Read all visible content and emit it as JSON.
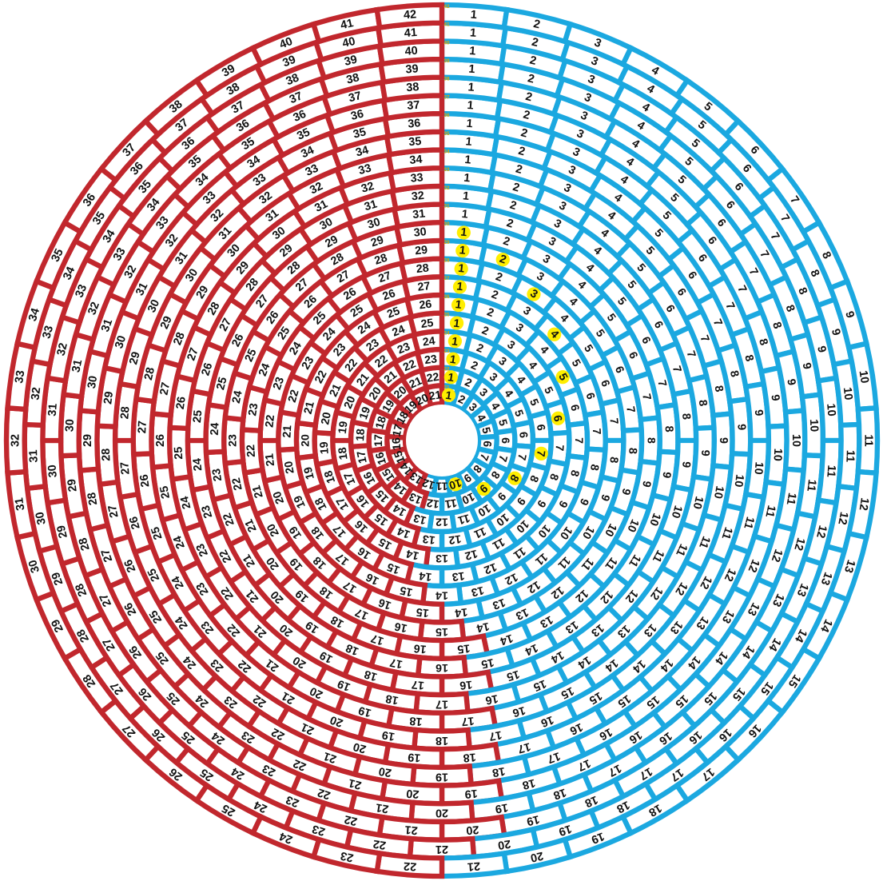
{
  "calendar": {
    "rings": [
      {
        "ring": 21,
        "split_after_day": 12,
        "highlight_days": [
          1,
          10
        ],
        "side_label_days": []
      },
      {
        "ring": 22,
        "split_after_day": 12,
        "highlight_days": [
          1,
          9
        ],
        "side_label_days": []
      },
      {
        "ring": 23,
        "split_after_day": 13,
        "highlight_days": [
          1,
          8
        ],
        "side_label_days": []
      },
      {
        "ring": 24,
        "split_after_day": 13,
        "highlight_days": [
          1,
          7
        ],
        "side_label_days": []
      },
      {
        "ring": 25,
        "split_after_day": 13,
        "highlight_days": [
          1,
          6
        ],
        "side_label_days": []
      },
      {
        "ring": 26,
        "split_after_day": 14,
        "highlight_days": [
          1,
          5
        ],
        "side_label_days": []
      },
      {
        "ring": 27,
        "split_after_day": 14,
        "highlight_days": [
          1,
          4
        ],
        "side_label_days": []
      },
      {
        "ring": 28,
        "split_after_day": 14,
        "highlight_days": [
          1,
          3
        ],
        "side_label_days": []
      },
      {
        "ring": 29,
        "split_after_day": 14,
        "highlight_days": [
          1,
          2
        ],
        "side_label_days": []
      },
      {
        "ring": 30,
        "split_after_day": 14,
        "highlight_days": [
          1
        ],
        "side_label_days": []
      },
      {
        "ring": 31,
        "split_after_day": 15,
        "highlight_days": [],
        "side_label_days": []
      },
      {
        "ring": 32,
        "split_after_day": 15,
        "highlight_days": [],
        "side_label_days": []
      },
      {
        "ring": 33,
        "split_after_day": 16,
        "highlight_days": [],
        "side_label_days": []
      },
      {
        "ring": 34,
        "split_after_day": 16,
        "highlight_days": [],
        "side_label_days": []
      },
      {
        "ring": 35,
        "split_after_day": 17,
        "highlight_days": [],
        "side_label_days": []
      },
      {
        "ring": 36,
        "split_after_day": 17,
        "highlight_days": [],
        "side_label_days": []
      },
      {
        "ring": 37,
        "split_after_day": 18,
        "highlight_days": [],
        "side_label_days": []
      },
      {
        "ring": 38,
        "split_after_day": 18,
        "highlight_days": [],
        "side_label_days": []
      },
      {
        "ring": 39,
        "split_after_day": 19,
        "highlight_days": [],
        "side_label_days": []
      },
      {
        "ring": 40,
        "split_after_day": 19,
        "highlight_days": [],
        "side_label_days": []
      },
      {
        "ring": 41,
        "split_after_day": 20,
        "highlight_days": [],
        "side_label_days": []
      },
      {
        "ring": 42,
        "split_after_day": 21,
        "highlight_days": [],
        "side_label_days": []
      }
    ],
    "colors": {
      "left_segment": "#c1272d",
      "right_segment": "#1ba8e0",
      "highlight": "#ffee00",
      "ring_number": "#e0a800",
      "text": "#111111",
      "cell_fill": "#ffffff"
    }
  }
}
